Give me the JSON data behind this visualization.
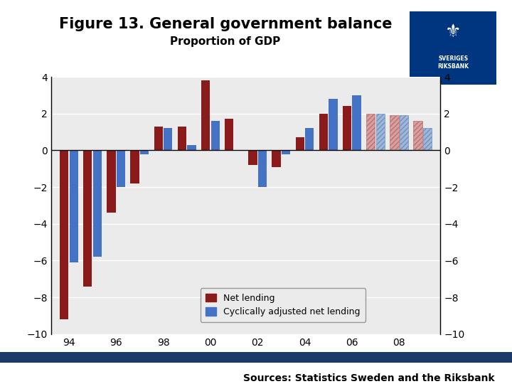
{
  "title": "Figure 13. General government balance",
  "subtitle": "Proportion of GDP",
  "source": "Sources: Statistics Sweden and the Riksbank",
  "n_years": 16,
  "x_labels": [
    "94",
    "96",
    "98",
    "00",
    "02",
    "04",
    "06",
    "08"
  ],
  "net_lending": [
    -9.2,
    -7.4,
    -3.4,
    -1.8,
    1.3,
    1.3,
    3.8,
    1.7,
    -0.8,
    -0.9,
    0.7,
    2.0,
    2.4,
    2.0,
    1.9,
    1.6
  ],
  "cyclical_net_lending": [
    -6.1,
    -5.8,
    -2.0,
    -0.2,
    1.2,
    0.3,
    1.6,
    null,
    -2.0,
    -0.2,
    1.2,
    2.8,
    3.0,
    2.0,
    1.9,
    1.2
  ],
  "net_lending_forecast": [
    false,
    false,
    false,
    false,
    false,
    false,
    false,
    false,
    false,
    false,
    false,
    false,
    false,
    true,
    true,
    true
  ],
  "cyclical_forecast": [
    false,
    false,
    false,
    false,
    false,
    false,
    false,
    false,
    false,
    false,
    false,
    false,
    false,
    true,
    true,
    true
  ],
  "ylim": [
    -10,
    4
  ],
  "yticks": [
    -10,
    -8,
    -6,
    -4,
    -2,
    0,
    2,
    4
  ],
  "bar_color_red": "#8B1A1A",
  "bar_color_blue": "#4472C4",
  "forecast_red": "#D4A0A0",
  "forecast_blue": "#A0B8D8",
  "background_color": "#EBEBEB",
  "logo_color": "#003580",
  "source_bar_color": "#1A3A6B",
  "title_fontsize": 15,
  "subtitle_fontsize": 11,
  "source_fontsize": 10,
  "legend_fontsize": 9,
  "tick_fontsize": 10
}
